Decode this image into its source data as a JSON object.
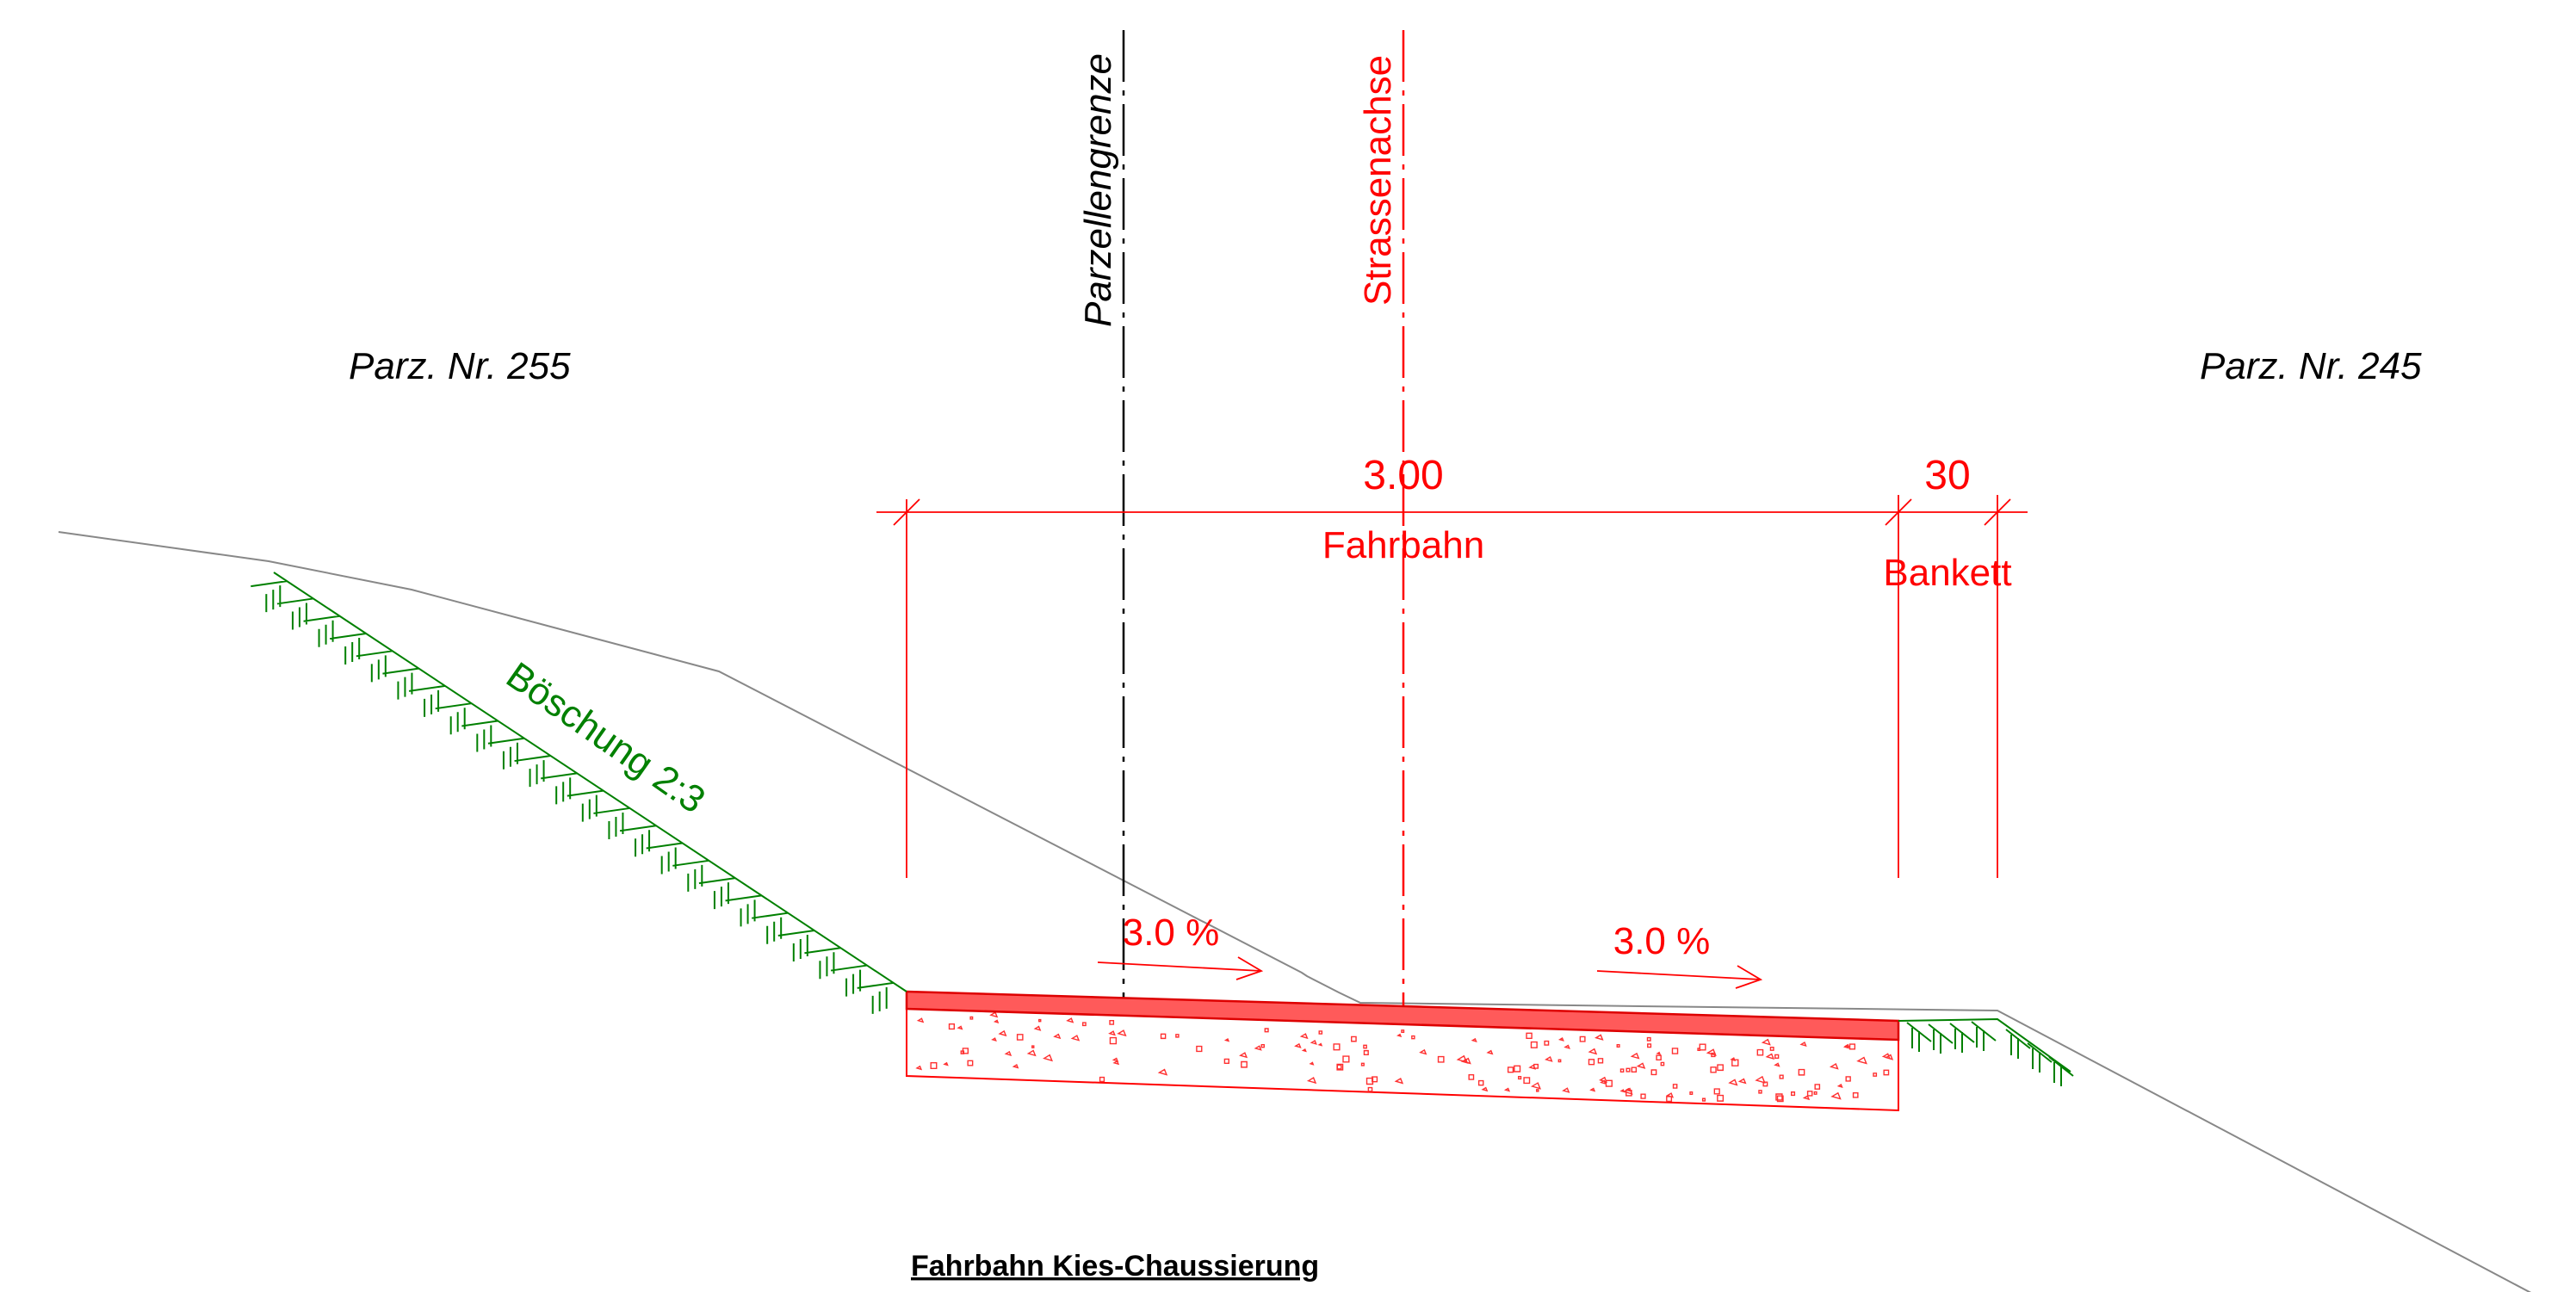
{
  "labels": {
    "parcel_left": "Parz. Nr. 255",
    "parcel_right": "Parz. Nr. 245",
    "parcel_boundary": "Parzellengrenze",
    "road_axis": "Strassenachse",
    "width_road": "3.00",
    "width_shoulder": "30",
    "road": "Fahrbahn",
    "shoulder": "Bankett",
    "slope": "Böschung 2:3",
    "crossfall_left": "3.0 %",
    "crossfall_right": "3.0 %",
    "title": "Fahrbahn Kies-Chaussierung"
  },
  "colors": {
    "dimension": "#ff0000",
    "road_surface": "#ff5a5a",
    "embankment": "#008000",
    "terrain": "#888888",
    "boundary": "#000000",
    "text": "#000000"
  }
}
